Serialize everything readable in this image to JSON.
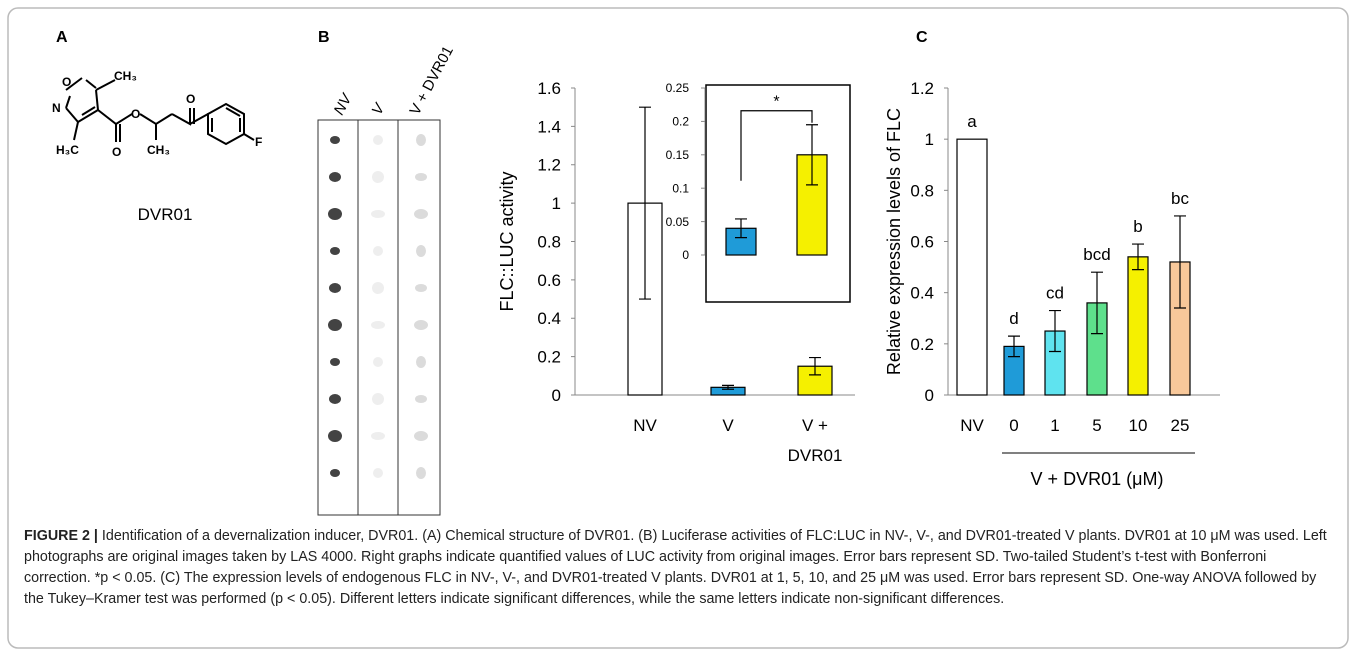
{
  "panels": [
    "A",
    "B",
    "C"
  ],
  "compound": {
    "name": "DVR01",
    "atoms": [
      "O",
      "N",
      "CH₃",
      "H₃C",
      "O",
      "O",
      "O",
      "CH₃",
      "F"
    ]
  },
  "blot_lanes": [
    "NV",
    "V",
    "V + DVR01"
  ],
  "chart_data": [
    {
      "type": "bar",
      "ylabel": "FLC::LUC activity",
      "categories": [
        "NV",
        "V",
        "V + DVR01"
      ],
      "values": [
        1.0,
        0.04,
        0.15
      ],
      "errors": [
        0.5,
        0.01,
        0.045
      ],
      "colors": [
        "#ffffff",
        "#1f9bd8",
        "#f5f000"
      ],
      "ylim": [
        0,
        1.6
      ],
      "yticks": [
        0,
        0.2,
        0.4,
        0.6,
        0.8,
        1,
        1.2,
        1.4,
        1.6
      ]
    },
    {
      "type": "bar",
      "values": [
        0.04,
        0.15
      ],
      "errors": [
        0.014,
        0.045
      ],
      "colors": [
        "#1f9bd8",
        "#f5f000"
      ],
      "ylim": [
        0,
        0.25
      ],
      "yticks": [
        0,
        0.05,
        0.1,
        0.15,
        0.2,
        0.25
      ],
      "annotation": "*"
    },
    {
      "type": "bar",
      "ylabel": "Relative expression levels of FLC",
      "xlabel": "V + DVR01 (μM)",
      "categories": [
        "NV",
        "0",
        "1",
        "5",
        "10",
        "25"
      ],
      "values": [
        1.0,
        0.19,
        0.25,
        0.36,
        0.54,
        0.52
      ],
      "errors": [
        null,
        0.04,
        0.08,
        0.12,
        0.05,
        0.18
      ],
      "annotations": [
        "a",
        "d",
        "cd",
        "bcd",
        "b",
        "bc"
      ],
      "colors": [
        "#ffffff",
        "#1f9bd8",
        "#5fe3ef",
        "#5ee08c",
        "#f5f000",
        "#f8c89a"
      ],
      "ylim": [
        0,
        1.2
      ],
      "yticks": [
        0,
        0.2,
        0.4,
        0.6,
        0.8,
        1,
        1.2
      ]
    }
  ],
  "caption": {
    "label": "FIGURE 2 |",
    "text": "Identification of a devernalization inducer, DVR01. (A) Chemical structure of DVR01. (B) Luciferase activities of FLC:LUC in NV-, V-, and DVR01-treated V plants. DVR01 at 10 μM was used. Left photographs are original images taken by LAS 4000. Right graphs indicate quantified values of LUC activity from original images. Error bars represent SD. Two-tailed Student’s t-test with Bonferroni correction. *p < 0.05. (C) The expression levels of endogenous FLC in NV-, V-, and DVR01-treated V plants. DVR01 at 1, 5, 10, and 25 μM was used. Error bars represent SD. One-way ANOVA followed by the Tukey–Kramer test was performed (p < 0.05). Different letters indicate significant differences, while the same letters indicate non-significant differences."
  }
}
